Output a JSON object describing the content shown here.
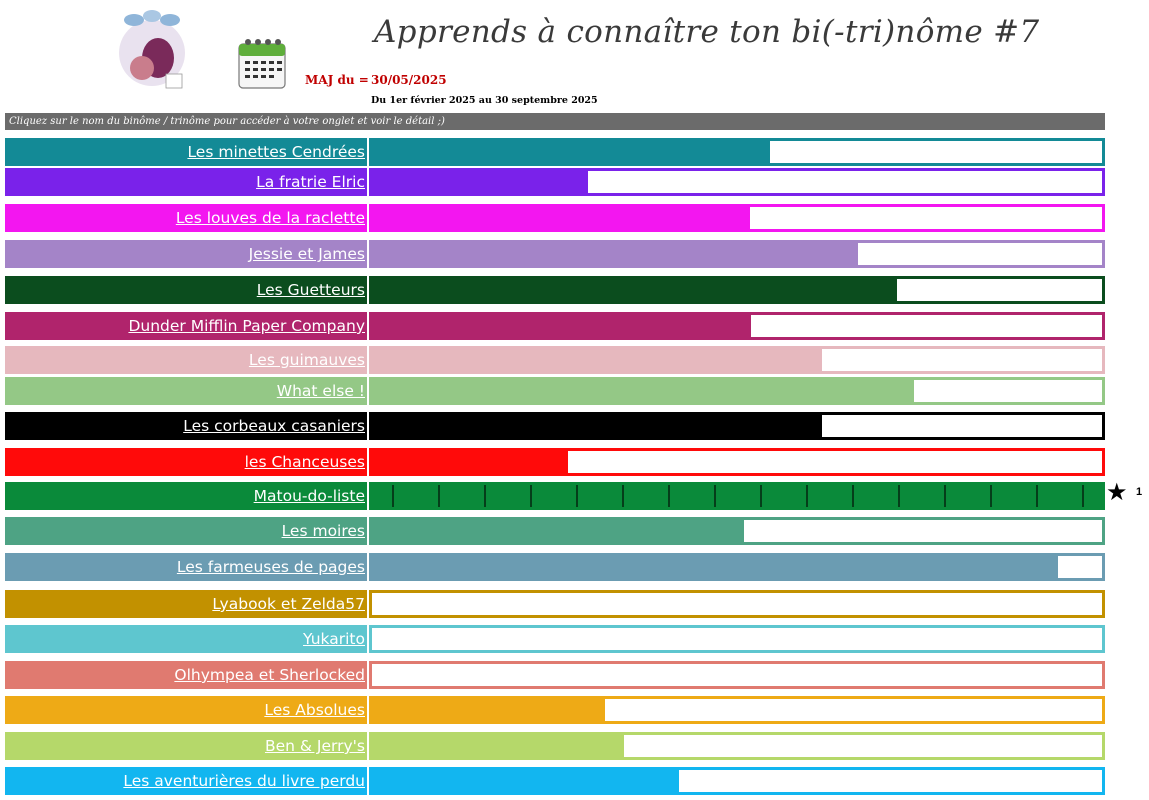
{
  "header": {
    "title": "Apprends à connaître ton bi(-tri)nôme #7",
    "maj_label": "MAJ du =",
    "maj_date": "30/05/2025",
    "period": "Du 1er février 2025 au 30 septembre 2025",
    "instruction": "Cliquez sur le nom du binôme / trinôme pour accéder à votre onglet et voir le détail ;)"
  },
  "teams": [
    {
      "name": "Les minettes Cendrées",
      "color": "#138a96",
      "progress": 0.545
    },
    {
      "name": "La fratrie Elric",
      "color": "#7a22ea",
      "progress": 0.296
    },
    {
      "name": "Les louves de la raclette",
      "color": "#f316f0",
      "progress": 0.518
    },
    {
      "name": "Jessie et James",
      "color": "#a484c8",
      "progress": 0.666
    },
    {
      "name": "Les Guetteurs",
      "color": "#0b4d1e",
      "progress": 0.719
    },
    {
      "name": "Dunder Mifflin Paper Company",
      "color": "#b0246c",
      "progress": 0.519
    },
    {
      "name": "Les guimauves",
      "color": "#e6b8be",
      "progress": 0.617
    },
    {
      "name": "What else !",
      "color": "#94c886",
      "progress": 0.742
    },
    {
      "name": "Les corbeaux casaniers",
      "color": "#000000",
      "progress": 0.617
    },
    {
      "name": "les Chanceuses",
      "color": "#ff0a0a",
      "progress": 0.269
    },
    {
      "name": "Matou-do-liste",
      "color": "#0a8a3a",
      "progress": 1.0,
      "stars": true
    },
    {
      "name": "Les moires",
      "color": "#4ea384",
      "progress": 0.51
    },
    {
      "name": "Les farmeuses de pages",
      "color": "#6b9cb2",
      "progress": 0.94
    },
    {
      "name": "Lyabook et Zelda57",
      "color": "#c29100",
      "progress": 0.0
    },
    {
      "name": "Yukarito",
      "color": "#5ec6cf",
      "progress": 0.0
    },
    {
      "name": "Olhympea et Sherlocked",
      "color": "#e07a70",
      "progress": 0.0
    },
    {
      "name": "Les Absolues",
      "color": "#eeaa16",
      "progress": 0.319
    },
    {
      "name": "Ben & Jerry's",
      "color": "#b5d86a",
      "progress": 0.345
    },
    {
      "name": "Les aventurières du livre perdu",
      "color": "#12b6f0",
      "progress": 0.42
    }
  ],
  "leader": {
    "icon": "star-icon",
    "rank": "1"
  }
}
